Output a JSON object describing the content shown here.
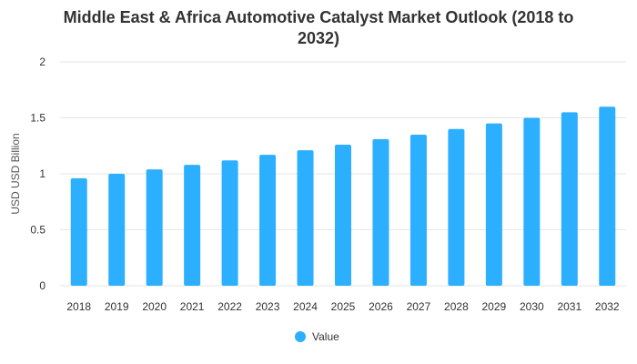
{
  "chart_data": {
    "type": "bar",
    "title_line1": "Middle East & Africa Automotive Catalyst Market Outlook (2018 to",
    "title_line2": "2032)",
    "xlabel": "",
    "ylabel": "USD USD Billion",
    "ylim": [
      0,
      2
    ],
    "yticks": [
      "0",
      "0.5",
      "1",
      "1.5",
      "2"
    ],
    "ytick_values": [
      0,
      0.5,
      1,
      1.5,
      2
    ],
    "grid": true,
    "legend_position": "bottom",
    "categories": [
      "2018",
      "2019",
      "2020",
      "2021",
      "2022",
      "2023",
      "2024",
      "2025",
      "2026",
      "2027",
      "2028",
      "2029",
      "2030",
      "2031",
      "2032"
    ],
    "series": [
      {
        "name": "Value",
        "color": "#2caffe",
        "values": [
          0.96,
          1.0,
          1.04,
          1.08,
          1.12,
          1.17,
          1.21,
          1.26,
          1.31,
          1.35,
          1.4,
          1.45,
          1.5,
          1.55,
          1.6
        ]
      }
    ]
  }
}
